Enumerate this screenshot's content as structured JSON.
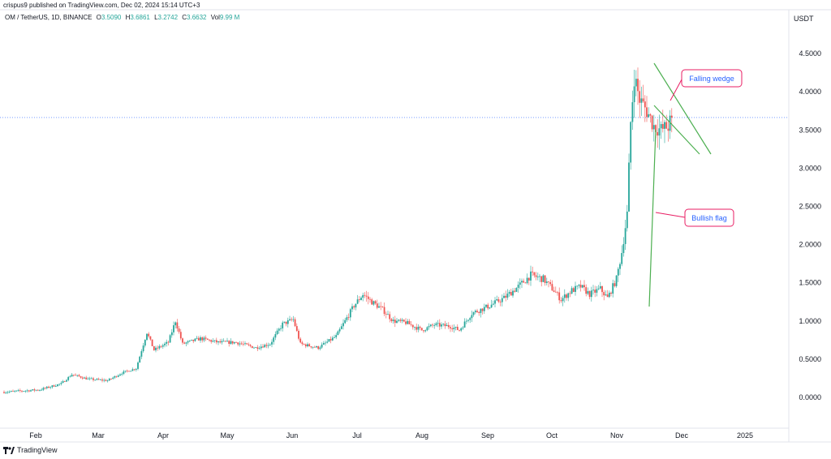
{
  "header": {
    "published_line": "crispus9 published on TradingView.com, Dec 02, 2024 15:14 UTC+3",
    "symbol_line": "OM / TetherUS, 1D, BINANCE",
    "ohlc": [
      {
        "label": "O",
        "value": "3.5090"
      },
      {
        "label": "H",
        "value": "3.6861"
      },
      {
        "label": "L",
        "value": "3.2742"
      },
      {
        "label": "C",
        "value": "3.6632"
      },
      {
        "label": "Vol",
        "value": "9.99 M"
      }
    ]
  },
  "footer": {
    "brand": "TradingView"
  },
  "colors": {
    "up": "#26a69a",
    "down": "#ef5350",
    "accent_blue": "#2962ff",
    "pattern_line": "#4caf50",
    "label_border": "#e91e63"
  },
  "chart_data": {
    "type": "candlestick",
    "currency_label": "USDT",
    "y_ticks": [
      "4.5000",
      "4.0000",
      "3.5000",
      "3.0000",
      "2.5000",
      "2.0000",
      "1.5000",
      "1.0000",
      "0.5000",
      "0.0000"
    ],
    "x_ticks": [
      "Feb",
      "Mar",
      "Apr",
      "May",
      "Jun",
      "Jul",
      "Aug",
      "Sep",
      "Oct",
      "Nov",
      "Dec",
      "2025"
    ],
    "ylim": [
      -0.35,
      4.75
    ],
    "current_price": 3.6632,
    "price_path": [
      [
        0,
        0.07
      ],
      [
        20,
        0.1
      ],
      [
        32,
        0.18
      ],
      [
        38,
        0.3
      ],
      [
        47,
        0.24
      ],
      [
        58,
        0.22
      ],
      [
        66,
        0.32
      ],
      [
        74,
        0.38
      ],
      [
        80,
        0.85
      ],
      [
        84,
        0.62
      ],
      [
        92,
        0.72
      ],
      [
        96,
        1.0
      ],
      [
        100,
        0.7
      ],
      [
        110,
        0.77
      ],
      [
        120,
        0.72
      ],
      [
        130,
        0.72
      ],
      [
        141,
        0.65
      ],
      [
        149,
        0.7
      ],
      [
        156,
        0.96
      ],
      [
        162,
        1.02
      ],
      [
        166,
        0.7
      ],
      [
        176,
        0.65
      ],
      [
        186,
        0.8
      ],
      [
        196,
        1.2
      ],
      [
        201,
        1.35
      ],
      [
        206,
        1.25
      ],
      [
        212,
        1.15
      ],
      [
        218,
        1.0
      ],
      [
        225,
        0.98
      ],
      [
        234,
        0.88
      ],
      [
        241,
        0.95
      ],
      [
        250,
        0.93
      ],
      [
        255,
        0.88
      ],
      [
        262,
        1.1
      ],
      [
        272,
        1.2
      ],
      [
        280,
        1.3
      ],
      [
        288,
        1.45
      ],
      [
        295,
        1.6
      ],
      [
        302,
        1.55
      ],
      [
        308,
        1.4
      ],
      [
        312,
        1.28
      ],
      [
        318,
        1.4
      ],
      [
        323,
        1.45
      ],
      [
        328,
        1.35
      ],
      [
        334,
        1.42
      ],
      [
        338,
        1.3
      ],
      [
        343,
        1.55
      ],
      [
        346,
        1.9
      ],
      [
        349,
        2.4
      ],
      [
        351,
        3.6
      ],
      [
        353,
        4.2
      ],
      [
        356,
        3.9
      ],
      [
        360,
        3.75
      ],
      [
        364,
        3.55
      ],
      [
        368,
        3.5
      ],
      [
        372,
        3.55
      ],
      [
        374,
        3.66
      ]
    ],
    "annotations": [
      {
        "text": "Falling wedge"
      },
      {
        "text": "Bullish flag"
      }
    ]
  }
}
